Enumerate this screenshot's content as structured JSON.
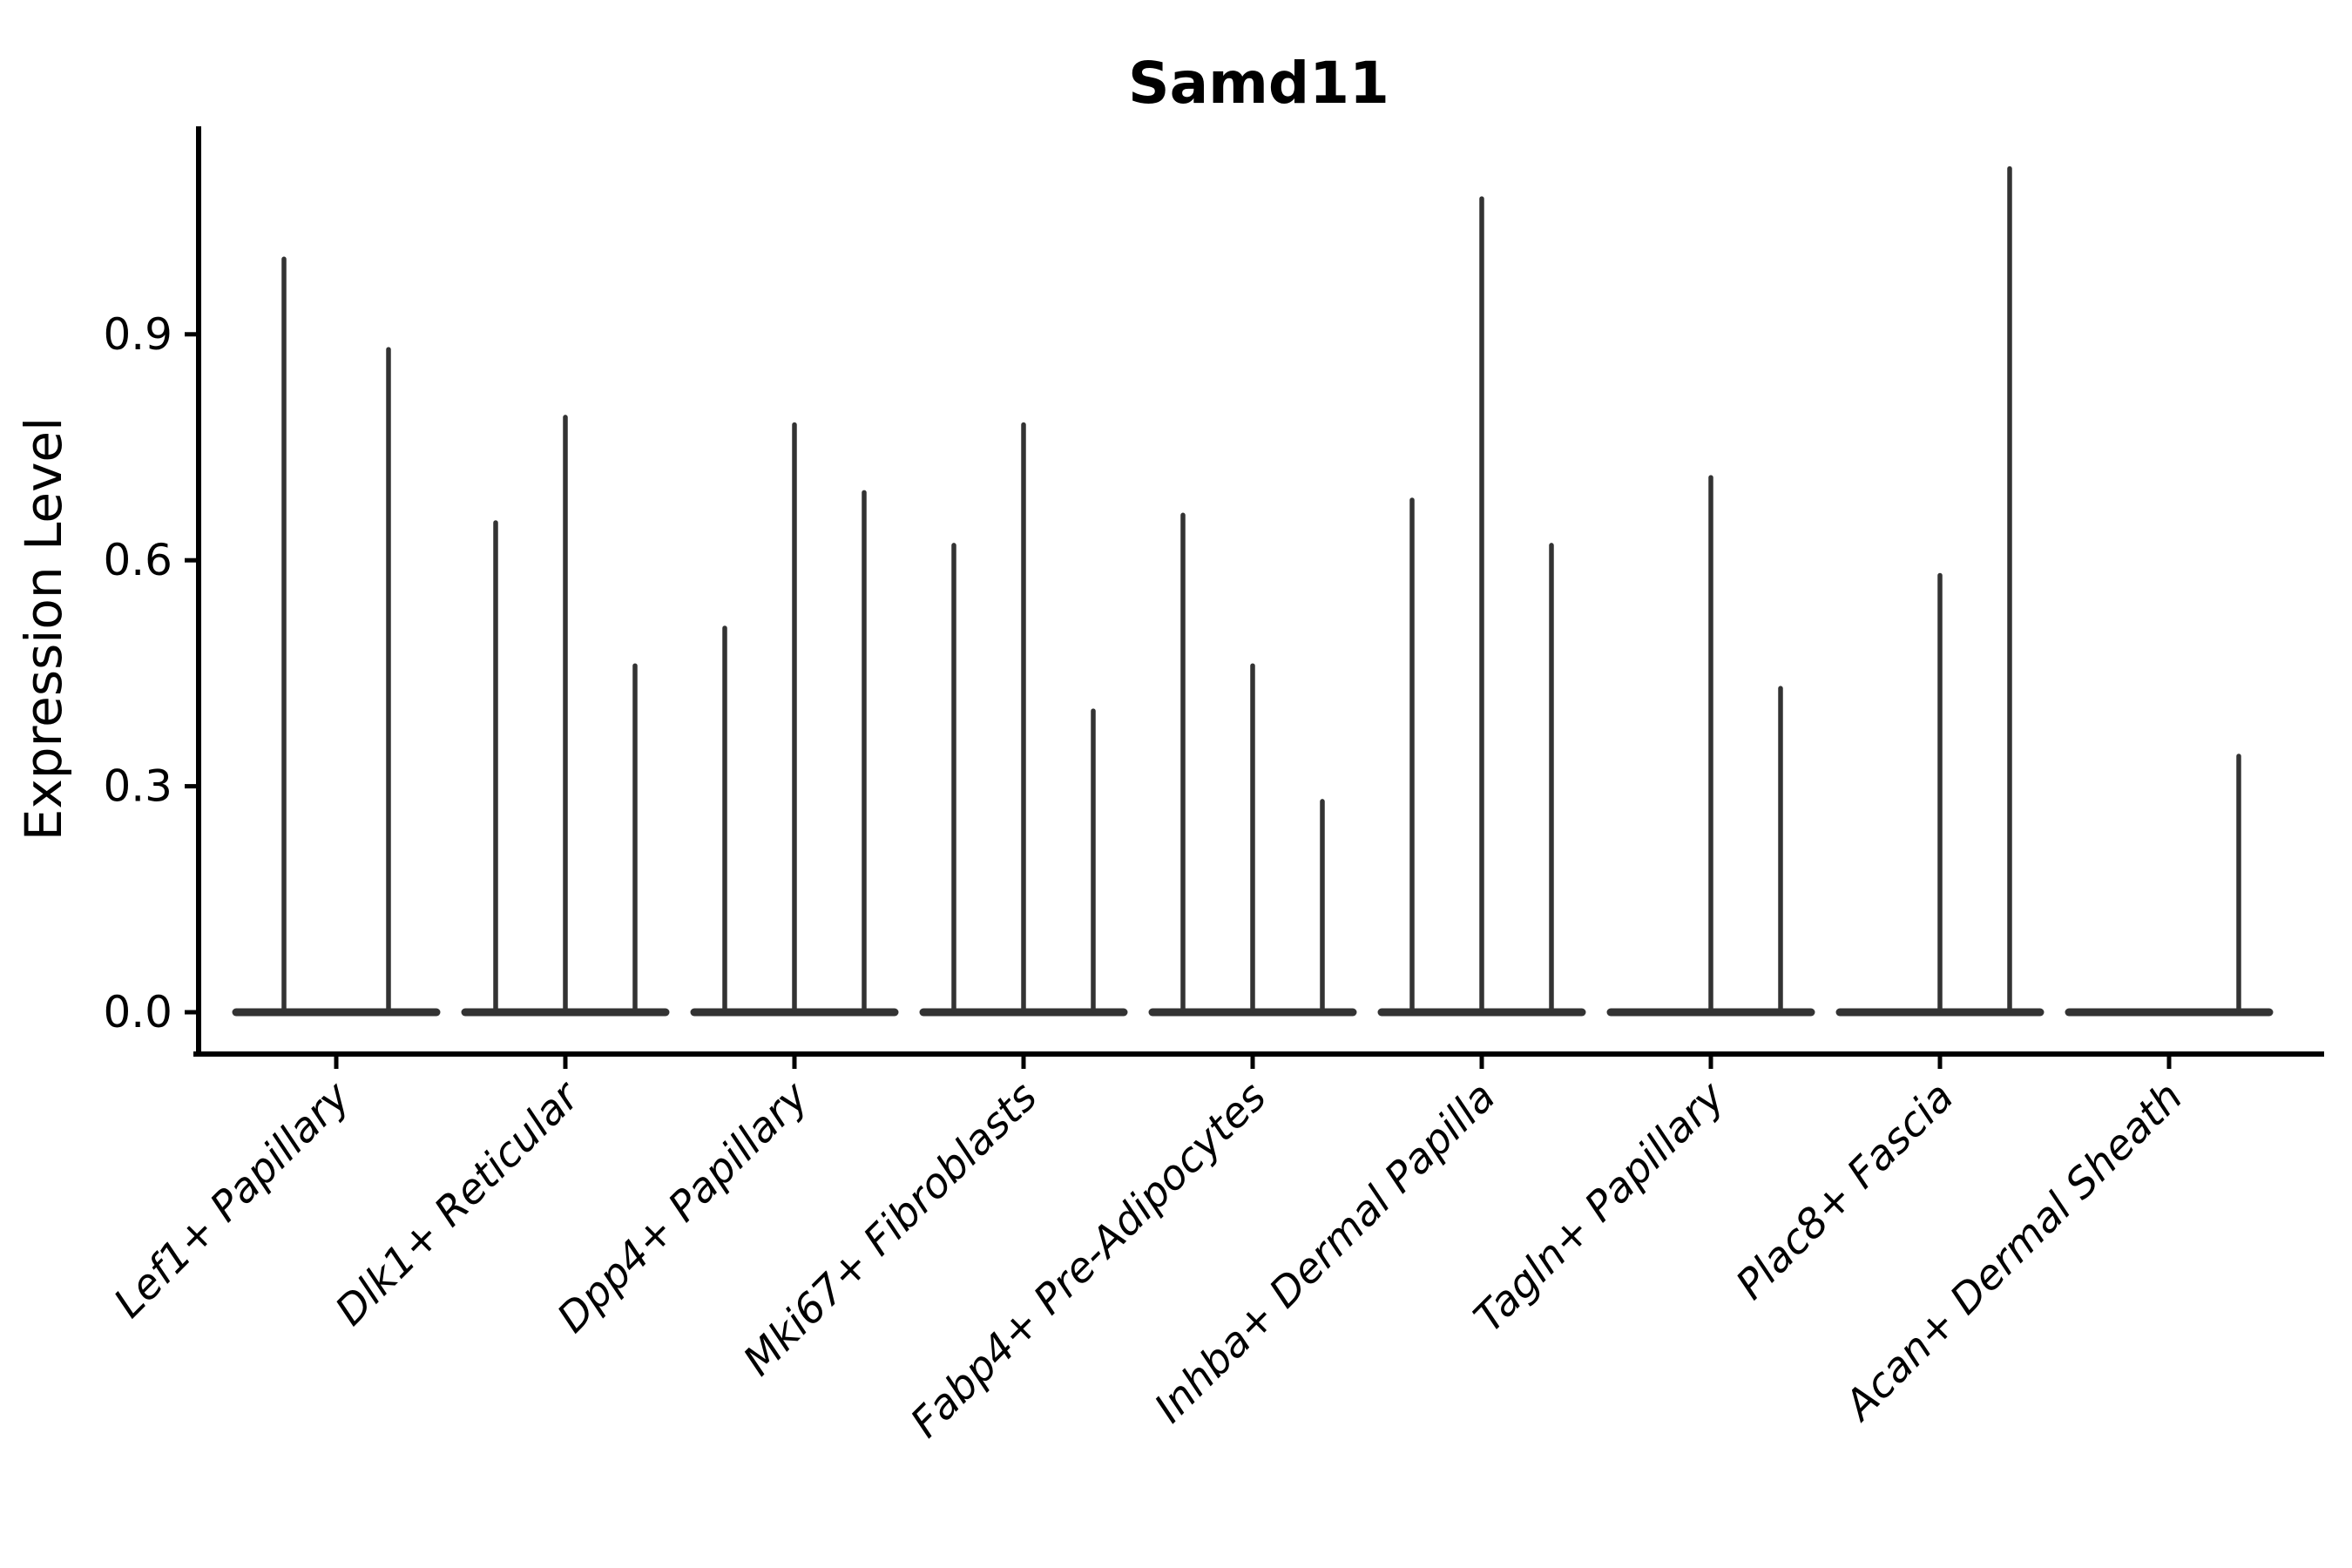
{
  "chart_data": {
    "type": "violin",
    "title": "Samd11",
    "ylabel": "Expression Level",
    "xlabel": "",
    "yticks": [
      "0.0",
      "0.3",
      "0.6",
      "0.9"
    ],
    "ytick_values": [
      0.0,
      0.3,
      0.6,
      0.9
    ],
    "ylim": [
      0.0,
      1.17
    ],
    "grid": false,
    "legend": "none",
    "description": "Violin plot of Samd11 expression; violins are needle-thin spikes rising from a flat base at 0. Each category holds 2-3 violins; value is the max expression (spike top). 0 = flat violin with no spike.",
    "categories": [
      "Lef1+ Papillary",
      "Dlk1+ Reticular",
      "Dpp4+ Papillary",
      "Mki67+ Fibroblasts",
      "Fabp4+ Pre-Adipocytes",
      "Inhba+ Dermal Papilla",
      "Tagln+ Papillary",
      "Plac8+ Fascia",
      "Acan+ Dermal Sheath"
    ],
    "groups": [
      {
        "label": "Lef1+ Papillary",
        "violin_max_values": [
          1.0,
          0.88
        ]
      },
      {
        "label": "Dlk1+ Reticular",
        "violin_max_values": [
          0.65,
          0.79,
          0.46
        ]
      },
      {
        "label": "Dpp4+ Papillary",
        "violin_max_values": [
          0.51,
          0.78,
          0.69
        ]
      },
      {
        "label": "Mki67+ Fibroblasts",
        "violin_max_values": [
          0.62,
          0.78,
          0.4
        ]
      },
      {
        "label": "Fabp4+ Pre-Adipocytes",
        "violin_max_values": [
          0.66,
          0.46,
          0.28
        ]
      },
      {
        "label": "Inhba+ Dermal Papilla",
        "violin_max_values": [
          0.68,
          1.08,
          0.62
        ]
      },
      {
        "label": "Tagln+ Papillary",
        "violin_max_values": [
          0.0,
          0.71,
          0.43
        ]
      },
      {
        "label": "Plac8+ Fascia",
        "violin_max_values": [
          0.0,
          0.58,
          1.12
        ]
      },
      {
        "label": "Acan+ Dermal Sheath",
        "violin_max_values": [
          0.0,
          0.0,
          0.34
        ]
      }
    ],
    "colors": {
      "ink": "#000000",
      "violin": "#333333",
      "background": "#ffffff"
    }
  }
}
